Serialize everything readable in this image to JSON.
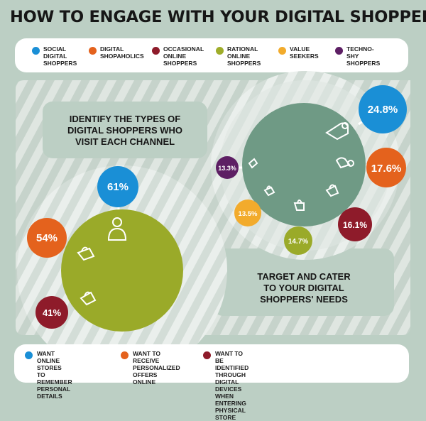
{
  "title": "HOW TO ENGAGE WITH YOUR DIGITAL SHOPPERS",
  "shopper_types": [
    {
      "label": "SOCIAL\nDIGITAL\nSHOPPERS",
      "color": "#1a8fd6"
    },
    {
      "label": "DIGITAL\nSHOPAHOLICS",
      "color": "#e4621d"
    },
    {
      "label": "OCCASIONAL\nONLINE\nSHOPPERS",
      "color": "#8e1b2a"
    },
    {
      "label": "RATIONAL\nONLINE\nSHOPPERS",
      "color": "#9fad2a"
    },
    {
      "label": "VALUE\nSEEKERS",
      "color": "#f2ab2c"
    },
    {
      "label": "TECHNO-SHY\nSHOPPERS",
      "color": "#5d1f64"
    }
  ],
  "channel_section": {
    "heading": "IDENTIFY THE TYPES OF\nDIGITAL SHOPPERS WHO\nVISIT EACH CHANNEL",
    "circle_color": "#9aaa29",
    "bubbles": [
      {
        "value": "61%",
        "color": "#1a8fd6",
        "icon": "person-icon"
      },
      {
        "value": "54%",
        "color": "#e4621d",
        "icon": "shopping-bag-icon"
      },
      {
        "value": "41%",
        "color": "#8e1b2a",
        "icon": "shopping-bag-icon"
      }
    ]
  },
  "target_section": {
    "heading": "TARGET AND CATER\nTO YOUR DIGITAL\nSHOPPERS' NEEDS",
    "circle_color": "#6f9a85",
    "bubbles": [
      {
        "value": "24.8%",
        "color": "#1a8fd6"
      },
      {
        "value": "17.6%",
        "color": "#e4621d"
      },
      {
        "value": "16.1%",
        "color": "#8e1b2a"
      },
      {
        "value": "14.7%",
        "color": "#9aaa29"
      },
      {
        "value": "13.5%",
        "color": "#f2ab2c"
      },
      {
        "value": "13.3%",
        "color": "#5d1f64"
      }
    ]
  },
  "needs": [
    {
      "label": "WANT ONLINE STORES\nTO REMEMBER\nPERSONAL DETAILS",
      "color": "#1a8fd6"
    },
    {
      "label": "WANT TO RECEIVE\nPERSONALIZED\nOFFERS ONLINE",
      "color": "#e4621d"
    },
    {
      "label": "WANT TO BE IDENTIFIED THROUGH\nDIGITAL DEVICES WHEN ENTERING\nPHYSICAL STORE",
      "color": "#8e1b2a"
    }
  ]
}
